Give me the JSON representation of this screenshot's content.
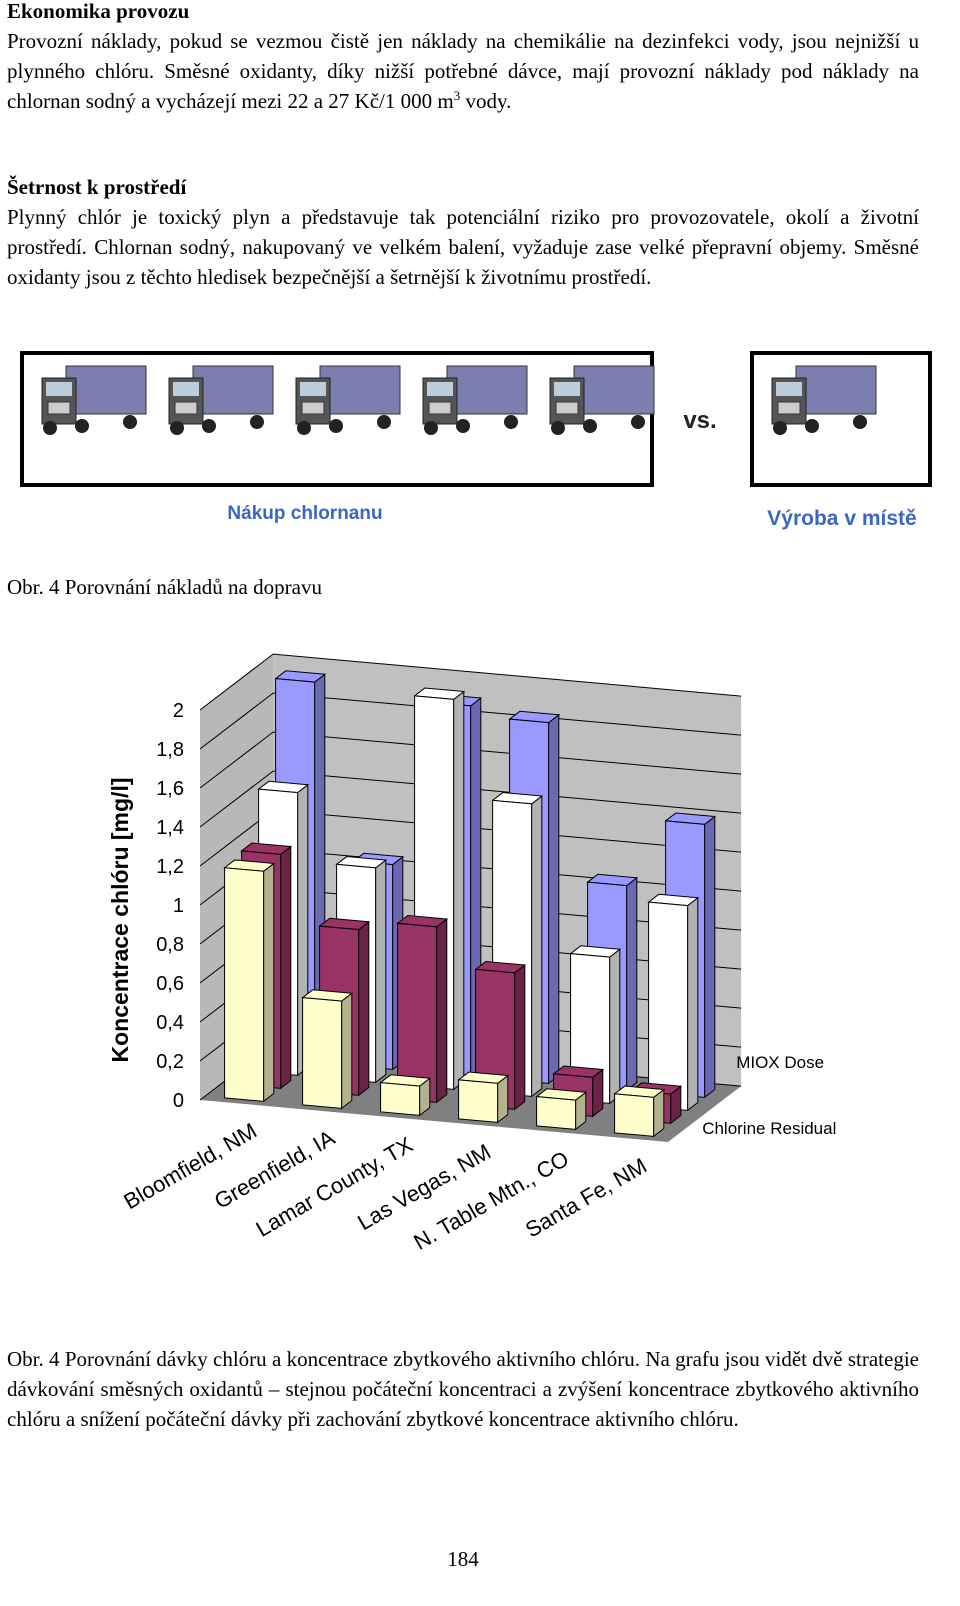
{
  "sections": [
    {
      "heading": "Ekonomika provozu",
      "text": "Provozní náklady, pokud se vezmou čistě jen náklady na chemikálie na dezinfekci vody, jsou nejnižší u plynného chlóru. Směsné oxidanty, díky nižší potřebné dávce, mají provozní náklady pod náklady na chlornan sodný a vycházejí mezi 22 a 27 Kč/1 000 m",
      "superscript": "3",
      "text_end": " vody."
    },
    {
      "heading": "Šetrnost k prostředí",
      "text": "Plynný chlór je toxický plyn a představuje tak potenciální riziko pro provozovatele, okolí a životní prostředí. Chlornan sodný, nakupovaný ve velkém balení, vyžaduje zase velké přepravní objemy. Směsné oxidanty jsou z těchto hledisek bezpečnější a šetrnější k životnímu prostředí."
    }
  ],
  "figure1": {
    "vs": "vs.",
    "left_label": "Nákup chlornanu",
    "right_label": "Výroba v místě",
    "caption": "Obr. 4 Porovnání nákladů na dopravu"
  },
  "chart_data": {
    "type": "bar3d",
    "y_label": "Koncentrace chlóru [mg/l]",
    "categories": [
      "Bloomfield, NM",
      "Greenfield, IA",
      "Lamar County, TX",
      "Las Vegas, NM",
      "N. Table Mtn., CO",
      "Santa Fe, NM"
    ],
    "depth_categories": [
      "Chlorine Residual",
      null,
      "MIOX Dose",
      null
    ],
    "series": [
      {
        "color": "#ffffcc",
        "values": [
          1.18,
          0.55,
          0.15,
          0.2,
          0.15,
          0.2
        ]
      },
      {
        "color": "#993366",
        "values": [
          1.2,
          0.85,
          0.9,
          0.7,
          0.2,
          0.15
        ]
      },
      {
        "color": "#ffffff",
        "values": [
          1.45,
          1.1,
          2.0,
          1.5,
          0.75,
          1.05
        ]
      },
      {
        "color": "#9999ff",
        "values": [
          1.95,
          1.05,
          1.9,
          1.85,
          1.05,
          1.4
        ]
      }
    ],
    "ylim": [
      0,
      2
    ],
    "yticks": [
      0,
      {
        "value": 0.2,
        "label": "0,2"
      },
      {
        "value": 0.4,
        "label": "0,4"
      },
      {
        "value": 0.6,
        "label": "0,6"
      },
      {
        "value": 0.8,
        "label": "0,8"
      },
      1,
      {
        "value": 1.2,
        "label": "1,2"
      },
      {
        "value": 1.4,
        "label": "1,4"
      },
      {
        "value": 1.6,
        "label": "1,6"
      },
      {
        "value": 1.8,
        "label": "1,8"
      },
      2
    ]
  },
  "caption2": "Obr. 4 Porovnání dávky chlóru a koncentrace zbytkového aktivního chlóru. Na grafu jsou vidět dvě strategie dávkování směsných oxidantů – stejnou počáteční koncentraci a zvýšení koncentrace zbytkového aktivního chlóru a snížení počáteční dávky při zachování zbytkové koncentrace aktivního chlóru.",
  "page_number": "184"
}
